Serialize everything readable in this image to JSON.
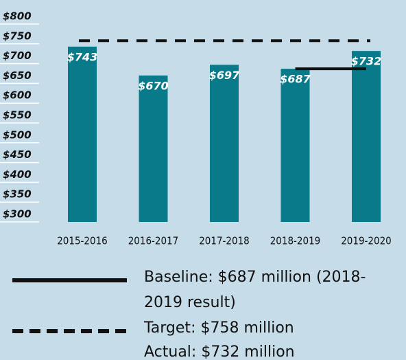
{
  "chart_data": {
    "type": "bar",
    "categories": [
      "2015-2016",
      "2016-2017",
      "2017-2018",
      "2018-2019",
      "2019-2020"
    ],
    "values": [
      743,
      670,
      697,
      687,
      732
    ],
    "value_labels": [
      "$743",
      "$670",
      "$697",
      "$687",
      "$732"
    ],
    "color": "#087a8a",
    "ylim": [
      300,
      800
    ],
    "yticks": [
      {
        "value": 300,
        "label": "$300"
      },
      {
        "value": 350,
        "label": "$350"
      },
      {
        "value": 400,
        "label": "$400"
      },
      {
        "value": 450,
        "label": "$450"
      },
      {
        "value": 500,
        "label": "$500"
      },
      {
        "value": 550,
        "label": "$550"
      },
      {
        "value": 600,
        "label": "$600"
      },
      {
        "value": 650,
        "label": "$650"
      },
      {
        "value": 700,
        "label": "$700"
      },
      {
        "value": 750,
        "label": "$750"
      },
      {
        "value": 800,
        "label": "$800"
      }
    ],
    "grid": true,
    "reference_lines": [
      {
        "name": "Baseline: $687 million (2018-2019 result)",
        "value": 687,
        "style": "solid",
        "span": [
          "2018-2019",
          "2019-2020"
        ]
      },
      {
        "name": "Target: $758 million",
        "value": 758,
        "style": "dashed",
        "span": [
          "2015-2016",
          "2019-2020"
        ]
      }
    ],
    "annotations": [
      "Actual: $732 million"
    ]
  }
}
